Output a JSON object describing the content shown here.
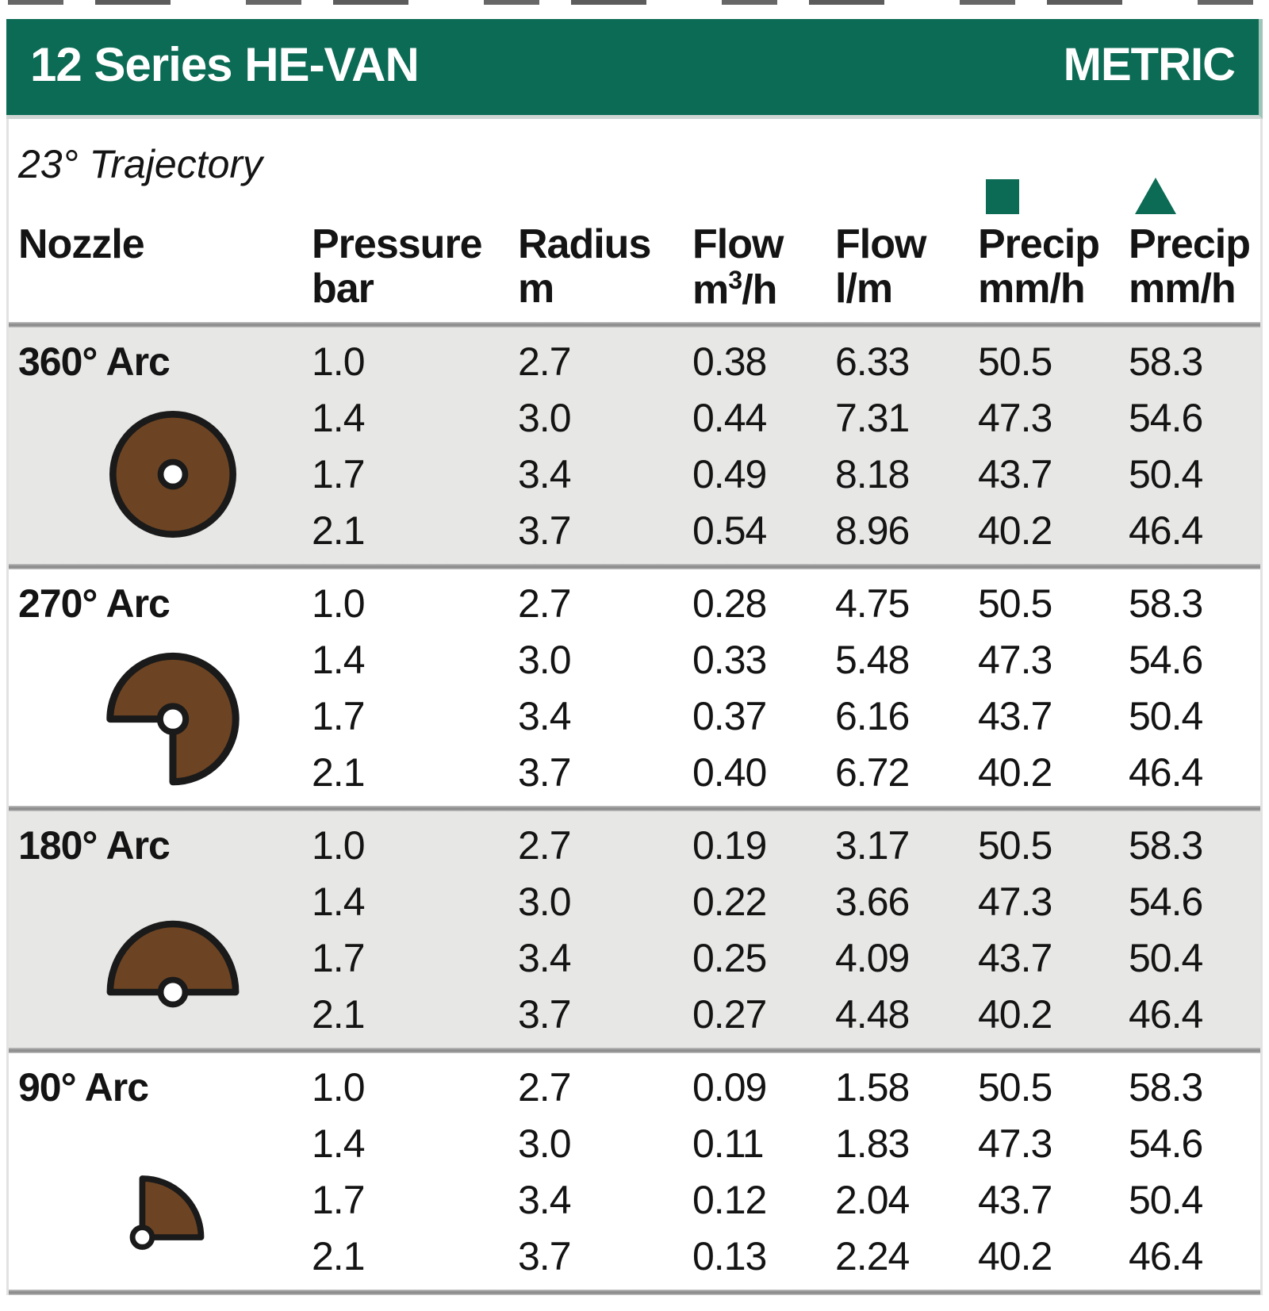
{
  "header": {
    "title": "12 Series HE-VAN",
    "badge": "METRIC"
  },
  "subheader": {
    "trajectory": "23° Trajectory"
  },
  "columns": [
    {
      "label": "Nozzle",
      "unit": ""
    },
    {
      "label": "Pressure",
      "unit": "bar"
    },
    {
      "label": "Radius",
      "unit": "m"
    },
    {
      "label": "Flow",
      "unit": "m³/h"
    },
    {
      "label": "Flow",
      "unit": "l/m"
    },
    {
      "label": "Precip",
      "unit": "mm/h",
      "icon": "square"
    },
    {
      "label": "Precip",
      "unit": "mm/h",
      "icon": "triangle"
    }
  ],
  "colors": {
    "green": "#0B6B54",
    "brown": "#6D4423",
    "outline": "#1a1a1a",
    "alt_row_bg": "#E7E7E5"
  },
  "sections": [
    {
      "arc": "360° Arc",
      "icon": "arc-360",
      "rows": [
        {
          "pressure": "1.0",
          "radius": "2.7",
          "flow_m3h": "0.38",
          "flow_lm": "6.33",
          "precip_sq": "50.5",
          "precip_tri": "58.3"
        },
        {
          "pressure": "1.4",
          "radius": "3.0",
          "flow_m3h": "0.44",
          "flow_lm": "7.31",
          "precip_sq": "47.3",
          "precip_tri": "54.6"
        },
        {
          "pressure": "1.7",
          "radius": "3.4",
          "flow_m3h": "0.49",
          "flow_lm": "8.18",
          "precip_sq": "43.7",
          "precip_tri": "50.4"
        },
        {
          "pressure": "2.1",
          "radius": "3.7",
          "flow_m3h": "0.54",
          "flow_lm": "8.96",
          "precip_sq": "40.2",
          "precip_tri": "46.4"
        }
      ]
    },
    {
      "arc": "270° Arc",
      "icon": "arc-270",
      "rows": [
        {
          "pressure": "1.0",
          "radius": "2.7",
          "flow_m3h": "0.28",
          "flow_lm": "4.75",
          "precip_sq": "50.5",
          "precip_tri": "58.3"
        },
        {
          "pressure": "1.4",
          "radius": "3.0",
          "flow_m3h": "0.33",
          "flow_lm": "5.48",
          "precip_sq": "47.3",
          "precip_tri": "54.6"
        },
        {
          "pressure": "1.7",
          "radius": "3.4",
          "flow_m3h": "0.37",
          "flow_lm": "6.16",
          "precip_sq": "43.7",
          "precip_tri": "50.4"
        },
        {
          "pressure": "2.1",
          "radius": "3.7",
          "flow_m3h": "0.40",
          "flow_lm": "6.72",
          "precip_sq": "40.2",
          "precip_tri": "46.4"
        }
      ]
    },
    {
      "arc": "180° Arc",
      "icon": "arc-180",
      "rows": [
        {
          "pressure": "1.0",
          "radius": "2.7",
          "flow_m3h": "0.19",
          "flow_lm": "3.17",
          "precip_sq": "50.5",
          "precip_tri": "58.3"
        },
        {
          "pressure": "1.4",
          "radius": "3.0",
          "flow_m3h": "0.22",
          "flow_lm": "3.66",
          "precip_sq": "47.3",
          "precip_tri": "54.6"
        },
        {
          "pressure": "1.7",
          "radius": "3.4",
          "flow_m3h": "0.25",
          "flow_lm": "4.09",
          "precip_sq": "43.7",
          "precip_tri": "50.4"
        },
        {
          "pressure": "2.1",
          "radius": "3.7",
          "flow_m3h": "0.27",
          "flow_lm": "4.48",
          "precip_sq": "40.2",
          "precip_tri": "46.4"
        }
      ]
    },
    {
      "arc": "90° Arc",
      "icon": "arc-90",
      "rows": [
        {
          "pressure": "1.0",
          "radius": "2.7",
          "flow_m3h": "0.09",
          "flow_lm": "1.58",
          "precip_sq": "50.5",
          "precip_tri": "58.3"
        },
        {
          "pressure": "1.4",
          "radius": "3.0",
          "flow_m3h": "0.11",
          "flow_lm": "1.83",
          "precip_sq": "47.3",
          "precip_tri": "54.6"
        },
        {
          "pressure": "1.7",
          "radius": "3.4",
          "flow_m3h": "0.12",
          "flow_lm": "2.04",
          "precip_sq": "43.7",
          "precip_tri": "50.4"
        },
        {
          "pressure": "2.1",
          "radius": "3.7",
          "flow_m3h": "0.13",
          "flow_lm": "2.24",
          "precip_sq": "40.2",
          "precip_tri": "46.4"
        }
      ]
    }
  ]
}
